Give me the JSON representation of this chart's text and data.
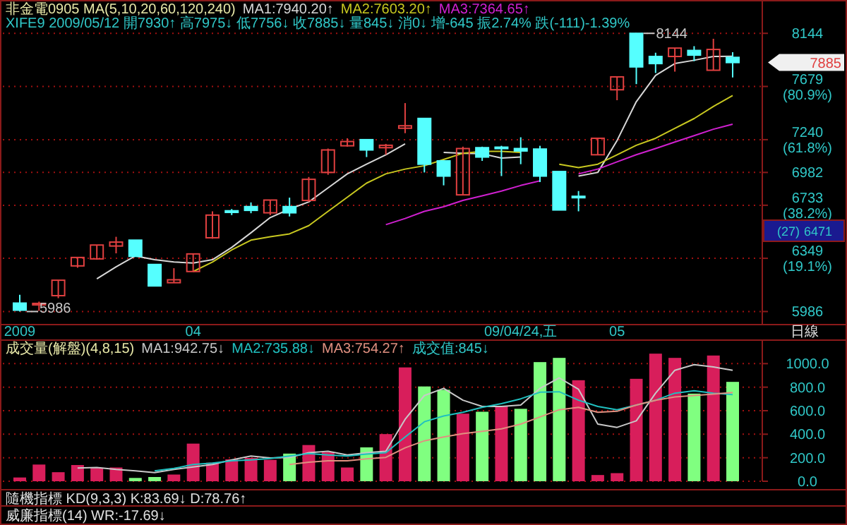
{
  "chart_data": [
    {
      "type": "candlestick",
      "title": "非金電0905 MA(5,10,20,60,120,240)",
      "subtitle": "XIFE9 2009/05/12 開7930↑ 高7975↓ 低7756↓ 收7885↓ 量845↓ 消0↓ 增-645 振2.74% 跌(-111)-1.39%",
      "categories": [
        "2009",
        null,
        null,
        null,
        null,
        null,
        null,
        null,
        null,
        "04",
        null,
        null,
        null,
        null,
        null,
        null,
        null,
        null,
        null,
        null,
        null,
        null,
        null,
        null,
        null,
        null,
        "09/04/24,五",
        null,
        null,
        null,
        null,
        "05",
        null,
        null,
        null,
        null,
        null,
        null
      ],
      "ohlc": [
        [
          6042,
          6098,
          5986,
          5995
        ],
        [
          6030,
          6052,
          5990,
          6040
        ],
        [
          6092,
          6197,
          6075,
          6197
        ],
        [
          6296,
          6355,
          6283,
          6355
        ],
        [
          6345,
          6443,
          6339,
          6443
        ],
        [
          6436,
          6502,
          6384,
          6464
        ],
        [
          6478,
          6478,
          6363,
          6363
        ],
        [
          6306,
          6306,
          6158,
          6158
        ],
        [
          6180,
          6280,
          6180,
          6200
        ],
        [
          6257,
          6380,
          6257,
          6380
        ],
        [
          6495,
          6688,
          6488,
          6660
        ],
        [
          6692,
          6705,
          6660,
          6680
        ],
        [
          6723,
          6754,
          6674,
          6695
        ],
        [
          6677,
          6772,
          6660,
          6772
        ],
        [
          6723,
          6790,
          6650,
          6677
        ],
        [
          6769,
          6947,
          6758,
          6929
        ],
        [
          6982,
          7169,
          6964,
          7158
        ],
        [
          7191,
          7251,
          7184,
          7225
        ],
        [
          7240,
          7240,
          7102,
          7158
        ],
        [
          7176,
          7206,
          7120,
          7195
        ],
        [
          7332,
          7539,
          7292,
          7352
        ],
        [
          7412,
          7412,
          6982,
          7046
        ],
        [
          7072,
          7072,
          6883,
          6954
        ],
        [
          6811,
          7184,
          6811,
          7169
        ],
        [
          7176,
          7184,
          7072,
          7102
        ],
        [
          7180,
          7191,
          6954,
          7169
        ],
        [
          7169,
          7259,
          7046,
          7150
        ],
        [
          7165,
          7191,
          6908,
          6954
        ],
        [
          6989,
          6989,
          6698,
          6698
        ],
        [
          6800,
          6840,
          6688,
          6790
        ],
        [
          7120,
          7251,
          7120,
          7251
        ],
        [
          7651,
          7761,
          7563,
          7761
        ],
        [
          8144,
          8144,
          7699,
          7847
        ],
        [
          7938,
          7971,
          7794,
          7876
        ],
        [
          7938,
          8012,
          7806,
          8012
        ],
        [
          7991,
          8029,
          7897,
          7950
        ],
        [
          7818,
          8095,
          7818,
          8000
        ],
        [
          7930,
          7975,
          7756,
          7885
        ]
      ],
      "series": [
        {
          "type": "line",
          "name": "MA1:7940.20↑",
          "color": "#d8d8d8",
          "values": [
            null,
            null,
            null,
            null,
            6207,
            6290,
            6366,
            6339,
            6323,
            6316,
            6339,
            6426,
            6531,
            6642,
            6705,
            6758,
            6864,
            6971,
            7046,
            7120,
            7206,
            null,
            7139,
            7132,
            7128,
            7094,
            7102,
            null,
            null,
            6954,
            6982,
            7233,
            7551,
            7773,
            7876,
            7905,
            7938,
            7940
          ]
        },
        {
          "type": "line",
          "name": "MA2:7603.20↑",
          "color": "#c8c820",
          "values": [
            null,
            null,
            null,
            null,
            null,
            null,
            null,
            null,
            null,
            6257,
            6323,
            6408,
            6478,
            6502,
            6523,
            6583,
            6688,
            6793,
            6900,
            6971,
            7008,
            7034,
            7083,
            7132,
            7147,
            7147,
            7139,
            null,
            7046,
            7019,
            7046,
            7120,
            7195,
            7251,
            7331,
            7411,
            7511,
            7603
          ]
        },
        {
          "type": "line",
          "name": "MA3:7364.65↑",
          "color": "#d020d0",
          "values": [
            null,
            null,
            null,
            null,
            null,
            null,
            null,
            null,
            null,
            null,
            null,
            null,
            null,
            null,
            null,
            null,
            null,
            null,
            null,
            6590,
            6635,
            6688,
            6722,
            6769,
            6804,
            6840,
            6882,
            6918,
            null,
            6971,
            7008,
            7064,
            7120,
            7169,
            7221,
            7272,
            7324,
            7365
          ]
        }
      ],
      "log": true,
      "ylim": [
        5900,
        8450
      ],
      "yticks": [
        5986,
        {
          "value": 6349,
          "label": "6349 (19.1%)"
        },
        {
          "value": 6733,
          "label": "6733 (38.2%)"
        },
        6982,
        {
          "value": 7240,
          "label": "7240 (61.8%)"
        },
        {
          "value": 7679,
          "label": "7679 (80.9%)"
        },
        8144
      ],
      "annotations": [
        "8144",
        "5986",
        "日線",
        "7885",
        "(27)",
        "6471"
      ],
      "grid": "y",
      "legend": "top left"
    },
    {
      "type": "bar",
      "title": "成交量(解盤)(4,8,15)",
      "categories": [
        null,
        null,
        null,
        null,
        null,
        null,
        null,
        null,
        null,
        null,
        null,
        null,
        null,
        null,
        null,
        null,
        null,
        null,
        null,
        null,
        null,
        null,
        null,
        null,
        null,
        null,
        null,
        null,
        null,
        null,
        null,
        null,
        null,
        null,
        null,
        null,
        null,
        null
      ],
      "series": [
        {
          "type": "bar",
          "colors": [
            "#d81e5b",
            "#d81e5b",
            "#d81e5b",
            "#d81e5b",
            "#d81e5b",
            "#d81e5b",
            "#80ff80",
            "#80ff80",
            "#d81e5b",
            "#d81e5b",
            "#d81e5b",
            "#d81e5b",
            "#d81e5b",
            "#d81e5b",
            "#80ff80",
            "#d81e5b",
            "#d81e5b",
            "#d81e5b",
            "#80ff80",
            "#d81e5b",
            "#d81e5b",
            "#80ff80",
            "#80ff80",
            "#d81e5b",
            "#80ff80",
            "#d81e5b",
            "#80ff80",
            "#80ff80",
            "#80ff80",
            "#d81e5b",
            "#d81e5b",
            "#d81e5b",
            "#d81e5b",
            "#d81e5b",
            "#d81e5b",
            "#80ff80",
            "#d81e5b",
            "#80ff80"
          ],
          "values": [
            32,
            142,
            77,
            138,
            113,
            117,
            28,
            36,
            57,
            320,
            158,
            186,
            198,
            182,
            235,
            308,
            247,
            117,
            288,
            401,
            968,
            806,
            778,
            575,
            591,
            636,
            616,
            1013,
            1049,
            859,
            53,
            69,
            871,
            1085,
            1049,
            745,
            1069,
            845
          ]
        },
        {
          "type": "line",
          "name": "MA1:942.75↓",
          "color": "#c8c8c8",
          "values": [
            null,
            null,
            null,
            113,
            117,
            101,
            89,
            73,
            101,
            122,
            142,
            182,
            215,
            198,
            203,
            243,
            255,
            223,
            243,
            255,
            527,
            729,
            790,
            689,
            636,
            636,
            648,
            790,
            879,
            782,
            486,
            458,
            514,
            749,
            944,
            992,
            972,
            943
          ]
        },
        {
          "type": "line",
          "name": "MA2:735.88↓",
          "color": "#20c0c0",
          "values": [
            null,
            null,
            null,
            null,
            null,
            null,
            null,
            89,
            109,
            142,
            154,
            174,
            182,
            194,
            215,
            235,
            223,
            215,
            231,
            243,
            377,
            506,
            555,
            587,
            628,
            660,
            701,
            757,
            761,
            689,
            636,
            608,
            648,
            689,
            749,
            769,
            749,
            736
          ]
        },
        {
          "type": "line",
          "name": "MA3:754.27↑",
          "color": "#e09080",
          "values": [
            null,
            null,
            null,
            null,
            null,
            null,
            null,
            null,
            null,
            null,
            null,
            null,
            null,
            null,
            142,
            162,
            174,
            174,
            190,
            203,
            284,
            344,
            377,
            405,
            425,
            446,
            486,
            547,
            608,
            628,
            587,
            595,
            648,
            689,
            717,
            729,
            741,
            754
          ]
        }
      ],
      "ylim": [
        0,
        1200
      ],
      "yticks": [
        {
          "value": 0,
          "label": "0.0"
        },
        {
          "value": 200,
          "label": "200.0"
        },
        {
          "value": 400,
          "label": "400.0"
        },
        {
          "value": 600,
          "label": "600.0"
        },
        {
          "value": 800,
          "label": "800.0"
        },
        {
          "value": 1000,
          "label": "1000.0"
        }
      ],
      "annotations": [
        "成交值:845↓",
        "隨機指標 KD(9,3,3) K:83.69↓ D:78.76↑",
        "威廉指標(14) WR:-17.69↓"
      ],
      "tick_labels": "y",
      "grid": "y",
      "legend": "top left"
    }
  ]
}
